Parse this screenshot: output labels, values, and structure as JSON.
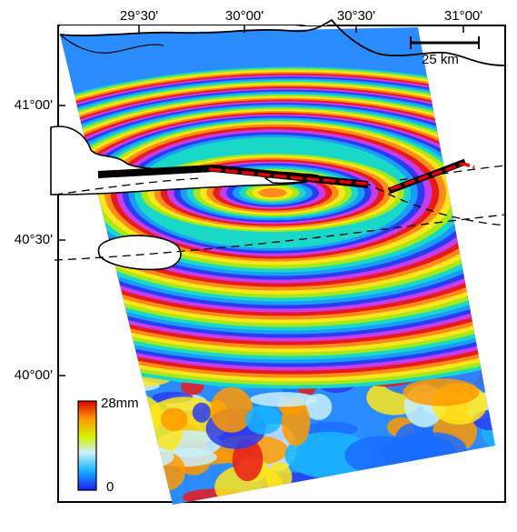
{
  "map": {
    "top_ticks": [
      "29°30'",
      "30°00'",
      "30°30'",
      "31°00'"
    ],
    "left_ticks": [
      "41°00'",
      "40°30'",
      "40°00'"
    ],
    "scale_bar_label": "25 km",
    "colorbar": {
      "max_label": "28mm",
      "min_label": "0",
      "colors": [
        "#1a1aff",
        "#19b4ff",
        "#c8f0ff",
        "#d8f000",
        "#ff9a00",
        "#d80000"
      ]
    },
    "fringe_colors": [
      "#e81a1a",
      "#ff8c1a",
      "#ffe61a",
      "#a8e81a",
      "#1ad8c8",
      "#1a9cff",
      "#2a3cf0",
      "#c83cf0"
    ],
    "fault_color": "#e00000",
    "land_outline_color": "#000000"
  }
}
